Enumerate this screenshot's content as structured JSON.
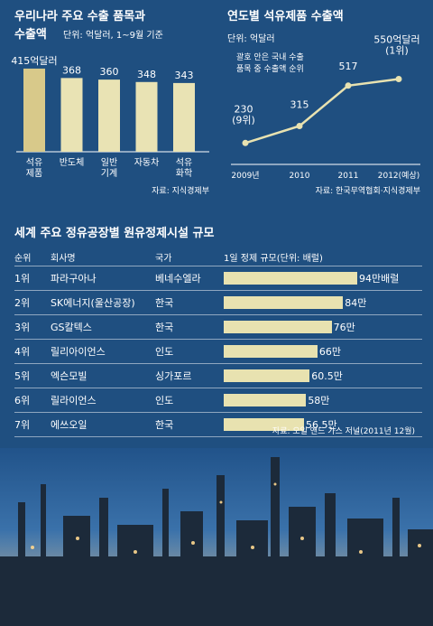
{
  "chart_data": [
    {
      "type": "bar",
      "title": "우리나라 주요 수출 품목과 수출액",
      "unit": "단위: 억달러, 1~9월 기준",
      "categories": [
        "석유 제품",
        "반도체",
        "일반 기계",
        "자동차",
        "석유 화학"
      ],
      "values": [
        415,
        368,
        360,
        348,
        343
      ],
      "value_labels": [
        "415억달러",
        "368",
        "360",
        "348",
        "343"
      ],
      "source": "자료: 지식경제부",
      "colors": [
        "#d8c98a",
        "#e9e3b4",
        "#e9e3b4",
        "#e9e3b4",
        "#e9e3b4"
      ]
    },
    {
      "type": "line",
      "title": "연도별 석유제품 수출액",
      "unit": "단위: 억달러",
      "note": "괄호 안은 국내 수출 품목 중 수출액 순위",
      "x": [
        "2009년",
        "2010",
        "2011",
        "2012(예상)"
      ],
      "values": [
        230,
        315,
        517,
        550
      ],
      "value_labels": [
        "230\n(9위)",
        "315",
        "517",
        "550억달러\n(1위)"
      ],
      "ylim": [
        150,
        620
      ],
      "source": "자료: 한국무역협회·지식경제부",
      "line_color": "#e8e2b0"
    },
    {
      "type": "bar",
      "title": "세계 주요 정유공장별 원유정제시설 규모",
      "columns": [
        "순위",
        "회사명",
        "국가",
        "1일 정제 규모(단위: 배럴)"
      ],
      "rows": [
        {
          "rank": "1위",
          "company": "파라구아나",
          "country": "베네수엘라",
          "value": 94,
          "label": "94만배럴"
        },
        {
          "rank": "2위",
          "company": "SK에너지(울산공장)",
          "country": "한국",
          "value": 84,
          "label": "84만"
        },
        {
          "rank": "3위",
          "company": "GS칼텍스",
          "country": "한국",
          "value": 76,
          "label": "76만"
        },
        {
          "rank": "4위",
          "company": "릴리아이언스",
          "country": "인도",
          "value": 66,
          "label": "66만"
        },
        {
          "rank": "5위",
          "company": "엑슨모빌",
          "country": "싱가포르",
          "value": 60.5,
          "label": "60.5만"
        },
        {
          "rank": "6위",
          "company": "릴라이언스",
          "country": "인도",
          "value": 58,
          "label": "58만"
        },
        {
          "rank": "7위",
          "company": "에쓰오일",
          "country": "한국",
          "value": 56.5,
          "label": "56.5만"
        }
      ],
      "source": "자료: 오일 앤드 가스 저널(2011년 12월)",
      "bar_color": "#e8e2b0"
    }
  ]
}
